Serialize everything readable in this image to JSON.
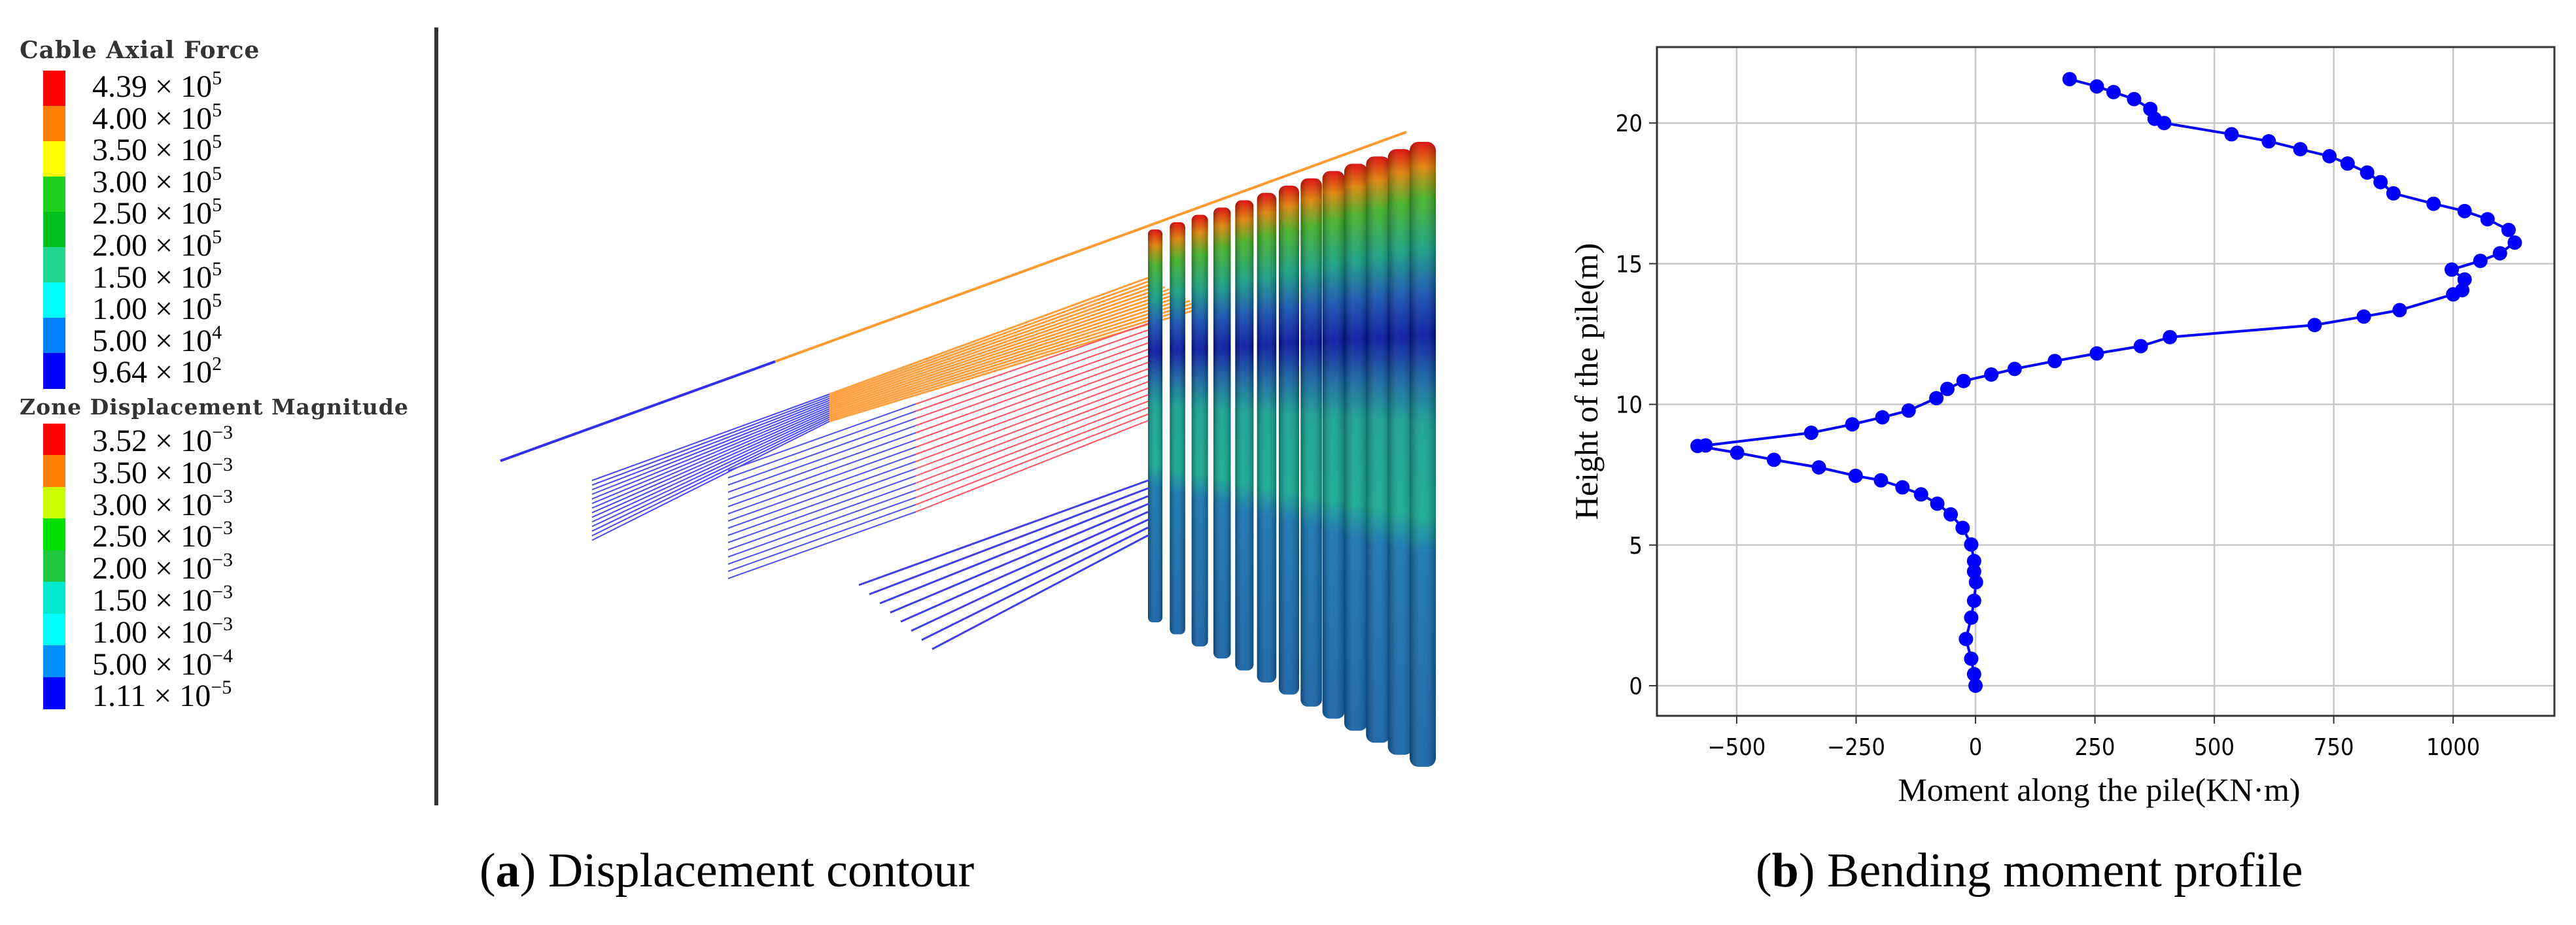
{
  "panel_a": {
    "caption_letter": "a",
    "caption_text": "Displacement contour",
    "legend_cable": {
      "title": "Cable Axial Force",
      "labels": [
        {
          "m": "4.39",
          "e": "5"
        },
        {
          "m": "4.00",
          "e": "5"
        },
        {
          "m": "3.50",
          "e": "5"
        },
        {
          "m": "3.00",
          "e": "5"
        },
        {
          "m": "2.50",
          "e": "5"
        },
        {
          "m": "2.00",
          "e": "5"
        },
        {
          "m": "1.50",
          "e": "5"
        },
        {
          "m": "1.00",
          "e": "5"
        },
        {
          "m": "5.00",
          "e": "4"
        },
        {
          "m": "9.64",
          "e": "2"
        }
      ],
      "colors": [
        "#ff0000",
        "#ff8000",
        "#ffff00",
        "#20d020",
        "#00c020",
        "#20d890",
        "#00ffff",
        "#0080ff",
        "#0000ff"
      ]
    },
    "legend_zone": {
      "title": "Zone Displacement Magnitude",
      "labels": [
        {
          "m": "3.52",
          "e": "−3"
        },
        {
          "m": "3.50",
          "e": "−3"
        },
        {
          "m": "3.00",
          "e": "−3"
        },
        {
          "m": "2.50",
          "e": "−3"
        },
        {
          "m": "2.00",
          "e": "−3"
        },
        {
          "m": "1.50",
          "e": "−3"
        },
        {
          "m": "1.00",
          "e": "−3"
        },
        {
          "m": "5.00",
          "e": "−4"
        },
        {
          "m": "1.11",
          "e": "−5"
        }
      ],
      "colors": [
        "#ff0000",
        "#ff8000",
        "#ccff00",
        "#00e000",
        "#20c840",
        "#00e8d0",
        "#00ffff",
        "#0090ff",
        "#0000ff"
      ]
    },
    "times": "×",
    "base": "10"
  },
  "panel_b": {
    "caption_letter": "b",
    "caption_text": "Bending moment profile"
  },
  "chart_data": {
    "type": "line",
    "xlabel": "Moment along the pile(KN·m)",
    "ylabel": "Height of the pile(m)",
    "xlim": [
      -667,
      1212
    ],
    "ylim": [
      -1.07,
      22.7
    ],
    "xticks": [
      -500,
      -250,
      0,
      250,
      500,
      750,
      1000
    ],
    "xtick_labels": [
      "−500",
      "−250",
      "0",
      "250",
      "500",
      "750",
      "1000"
    ],
    "yticks": [
      0,
      5,
      10,
      15,
      20
    ],
    "ytick_labels": [
      "0",
      "5",
      "10",
      "15",
      "20"
    ],
    "grid": true,
    "marker": "circle",
    "color": "#0000ff",
    "series": [
      {
        "x": [
          197,
          254,
          289,
          332,
          366,
          375,
          395,
          536,
          614,
          680,
          741,
          779,
          820,
          848,
          875,
          959,
          1024,
          1072,
          1116,
          1129,
          1098,
          1057,
          997,
          1024,
          1019,
          1000,
          888,
          813,
          710,
          407,
          346,
          254,
          166,
          82,
          33,
          -25,
          -59,
          -82,
          -140,
          -195,
          -258,
          -344,
          -565,
          -582,
          -499,
          -422,
          -328,
          -251,
          -198,
          -153,
          -114,
          -80,
          -52,
          -27,
          -9,
          -3,
          -3,
          1,
          -3,
          -9,
          -20,
          -9,
          -3,
          0
        ],
        "y": [
          21.56,
          21.3,
          21.1,
          20.85,
          20.5,
          20.15,
          20.0,
          19.6,
          19.35,
          19.07,
          18.82,
          18.56,
          18.24,
          17.9,
          17.5,
          17.13,
          16.87,
          16.58,
          16.2,
          15.75,
          15.37,
          15.1,
          14.79,
          14.44,
          14.06,
          13.91,
          13.35,
          13.12,
          12.82,
          12.39,
          12.07,
          11.81,
          11.54,
          11.26,
          11.06,
          10.83,
          10.55,
          10.22,
          9.78,
          9.54,
          9.29,
          8.99,
          8.54,
          8.52,
          8.28,
          8.03,
          7.76,
          7.46,
          7.3,
          7.05,
          6.8,
          6.47,
          6.09,
          5.61,
          5.02,
          4.43,
          4.06,
          3.68,
          3.02,
          2.42,
          1.66,
          0.96,
          0.41,
          0.0
        ]
      }
    ]
  }
}
